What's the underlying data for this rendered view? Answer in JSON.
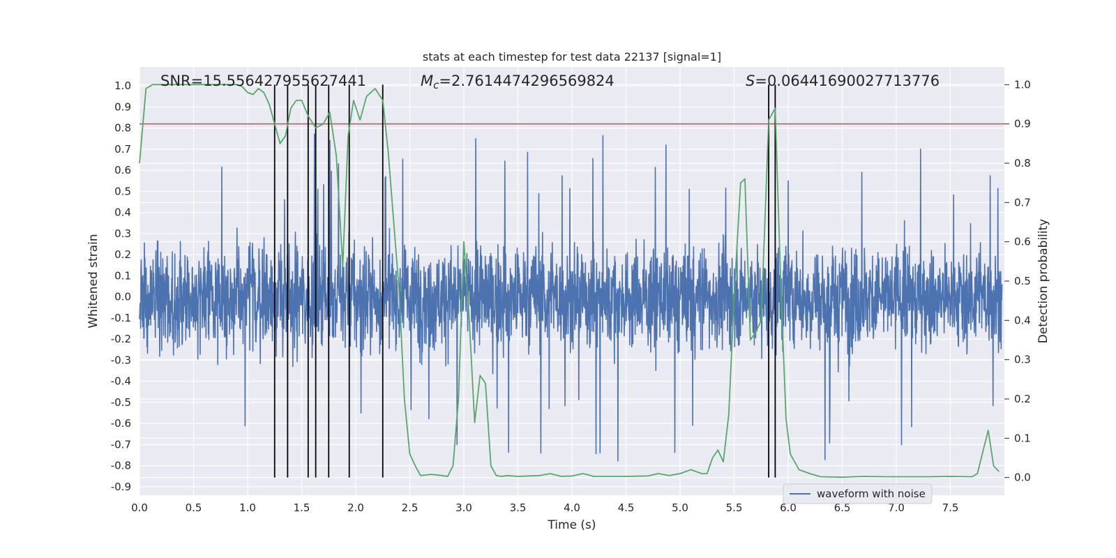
{
  "chart_data": {
    "type": "line",
    "title": "stats at each timestep for test data 22137 [signal=1]",
    "xlabel": "Time (s)",
    "ylabel_left": "Whitened strain",
    "ylabel_right": "Detection probability",
    "xlim": [
      0.0,
      8.0
    ],
    "ylim_left": [
      -0.94,
      1.09
    ],
    "ylim_right": [
      -0.045,
      1.045
    ],
    "x_ticks": [
      "0.0",
      "0.5",
      "1.0",
      "1.5",
      "2.0",
      "2.5",
      "3.0",
      "3.5",
      "4.0",
      "4.5",
      "5.0",
      "5.5",
      "6.0",
      "6.5",
      "7.0",
      "7.5"
    ],
    "y_left_ticks": [
      "1.0",
      "0.9",
      "0.8",
      "0.7",
      "0.6",
      "0.5",
      "0.4",
      "0.3",
      "0.2",
      "0.1",
      "0.0",
      "-0.1",
      "-0.2",
      "-0.3",
      "-0.4",
      "-0.5",
      "-0.6",
      "-0.7",
      "-0.8",
      "-0.9"
    ],
    "y_right_ticks": [
      "1.0",
      "0.9",
      "0.8",
      "0.7",
      "0.6",
      "0.5",
      "0.4",
      "0.3",
      "0.2",
      "0.1",
      "0.0"
    ],
    "grid": true,
    "legend_position": "bottom-center-right",
    "annotations": {
      "snr": "SNR=15.556427955627441",
      "mc_symbol": "M",
      "mc_subscript": "c",
      "mc_value": "=2.7614474296569824",
      "s_symbol": "S",
      "s_value": "=0.06441690027713776"
    },
    "threshold": {
      "axis": "right",
      "value": 0.9
    },
    "event_lines_x": [
      1.25,
      1.37,
      1.56,
      1.63,
      1.75,
      1.94,
      2.25,
      5.82,
      5.88
    ],
    "event_lines_range_right": [
      0.0,
      1.0
    ],
    "series": [
      {
        "name": "waveform with noise",
        "axis": "left",
        "style": "strain-noise",
        "typical_abs_max": 0.55,
        "peak_max": 1.0,
        "peak_min": -0.84
      },
      {
        "axis": "right",
        "x": [
          0.0,
          0.06,
          0.12,
          0.2,
          0.3,
          0.4,
          0.5,
          0.6,
          0.7,
          0.8,
          0.9,
          0.95,
          1.0,
          1.05,
          1.1,
          1.15,
          1.2,
          1.24,
          1.3,
          1.35,
          1.4,
          1.45,
          1.5,
          1.56,
          1.63,
          1.7,
          1.76,
          1.82,
          1.88,
          1.93,
          1.98,
          2.04,
          2.1,
          2.18,
          2.25,
          2.3,
          2.4,
          2.45,
          2.5,
          2.55,
          2.6,
          2.7,
          2.8,
          2.85,
          2.9,
          2.95,
          3.0,
          3.05,
          3.1,
          3.15,
          3.2,
          3.25,
          3.3,
          3.35,
          3.4,
          3.5,
          3.6,
          3.7,
          3.8,
          3.9,
          4.0,
          4.1,
          4.15,
          4.2,
          4.3,
          4.5,
          4.7,
          4.8,
          4.9,
          5.0,
          5.1,
          5.2,
          5.25,
          5.3,
          5.35,
          5.4,
          5.45,
          5.5,
          5.56,
          5.6,
          5.65,
          5.7,
          5.75,
          5.82,
          5.88,
          5.93,
          5.98,
          6.02,
          6.1,
          6.2,
          6.3,
          6.5,
          6.7,
          6.9,
          7.1,
          7.3,
          7.5,
          7.7,
          7.75,
          7.8,
          7.85,
          7.9,
          7.95
        ],
        "y": [
          0.8,
          0.99,
          1.0,
          1.0,
          1.0,
          1.0,
          1.0,
          1.0,
          1.0,
          1.0,
          1.0,
          0.995,
          0.98,
          0.975,
          0.99,
          0.98,
          0.95,
          0.91,
          0.85,
          0.87,
          0.94,
          0.96,
          0.96,
          0.92,
          0.89,
          0.9,
          0.93,
          0.82,
          0.54,
          0.87,
          0.96,
          0.91,
          0.97,
          0.99,
          0.96,
          0.83,
          0.48,
          0.2,
          0.06,
          0.03,
          0.005,
          0.008,
          0.005,
          0.003,
          0.03,
          0.2,
          0.6,
          0.4,
          0.14,
          0.26,
          0.24,
          0.03,
          0.005,
          0.003,
          0.005,
          0.003,
          0.004,
          0.005,
          0.01,
          0.003,
          0.004,
          0.01,
          0.007,
          0.003,
          0.003,
          0.003,
          0.004,
          0.01,
          0.005,
          0.01,
          0.02,
          0.01,
          0.01,
          0.05,
          0.07,
          0.04,
          0.16,
          0.46,
          0.75,
          0.76,
          0.35,
          0.37,
          0.4,
          0.91,
          0.94,
          0.5,
          0.15,
          0.06,
          0.02,
          0.01,
          0.002,
          0.001,
          0.003,
          0.002,
          0.002,
          0.002,
          0.003,
          0.002,
          0.01,
          0.065,
          0.12,
          0.03,
          0.015
        ]
      }
    ],
    "colors": {
      "background": "#eaeaf2",
      "grid": "#ffffff",
      "strain": "#4c72b0",
      "probability": "#55a868",
      "threshold": "#c44e52",
      "event_line": "#000000"
    }
  }
}
